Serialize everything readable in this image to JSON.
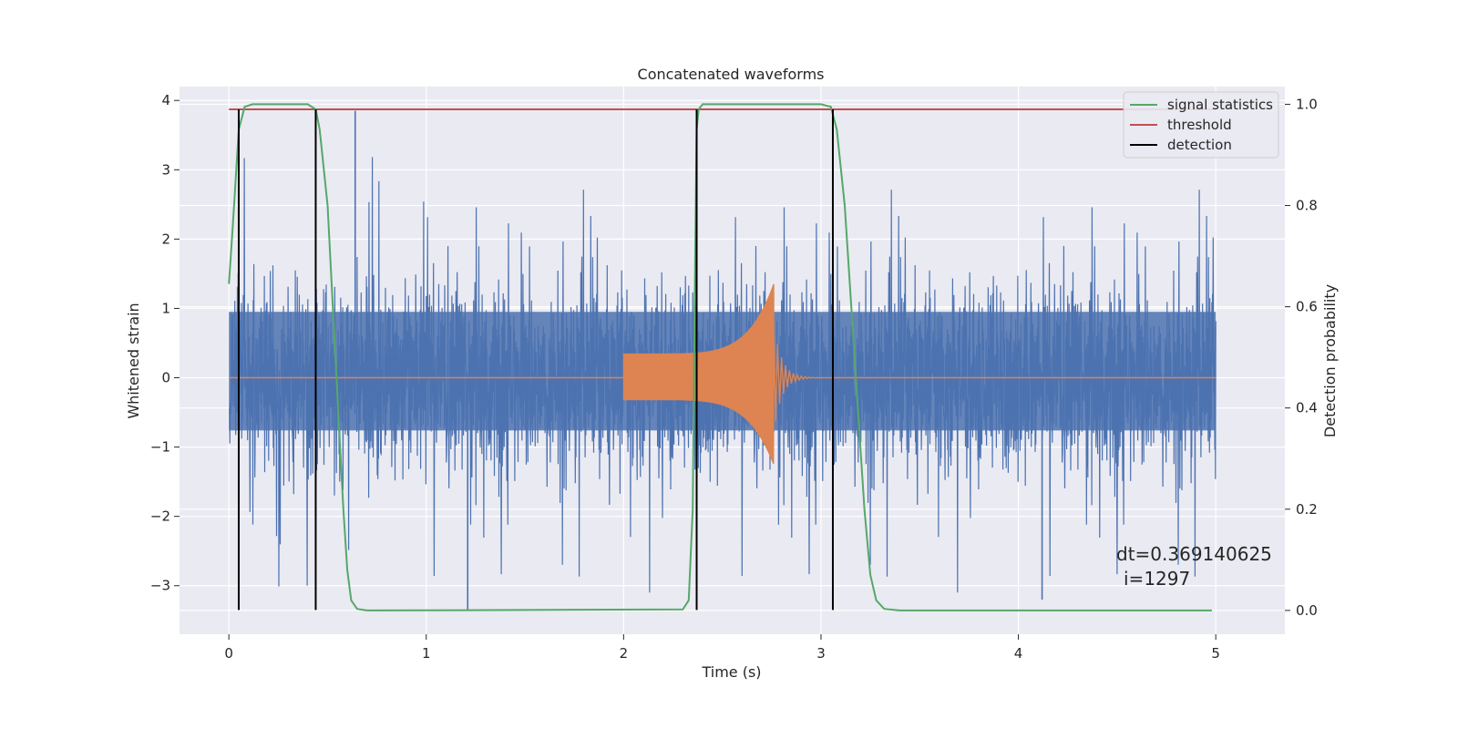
{
  "chart_data": {
    "type": "line",
    "title": "Concatenated waveforms",
    "xlabel": "Time (s)",
    "ylabel": "Whitened strain",
    "y2label": "Detection probability",
    "xlim": [
      -0.25,
      5.35
    ],
    "ylim": [
      -3.7,
      4.2
    ],
    "y2lim": [
      -0.047,
      1.035
    ],
    "x_ticks": [
      0,
      1,
      2,
      3,
      4,
      5
    ],
    "x_tick_labels": [
      "0",
      "1",
      "2",
      "3",
      "4",
      "5"
    ],
    "y_ticks": [
      -3,
      -2,
      -1,
      0,
      1,
      2,
      3,
      4
    ],
    "y_tick_labels": [
      "−3",
      "−2",
      "−1",
      "0",
      "1",
      "2",
      "3",
      "4"
    ],
    "y2_ticks": [
      0.0,
      0.2,
      0.4,
      0.6,
      0.8,
      1.0
    ],
    "y2_tick_labels": [
      "0.0",
      "0.2",
      "0.4",
      "0.6",
      "0.8",
      "1.0"
    ],
    "grid": true,
    "legend_position": "top-right",
    "legend": [
      {
        "label": "signal statistics",
        "color": "#55a868"
      },
      {
        "label": "threshold",
        "color": "#c44e52"
      },
      {
        "label": "detection",
        "color": "#000000"
      }
    ],
    "noise": {
      "color": "#4c72b0",
      "x_range": [
        0,
        5
      ],
      "core_amplitude": 0.95,
      "peak_extremes": [
        3.85,
        -3.35
      ]
    },
    "chirp": {
      "color": "#dd8452",
      "x_start": 2.0,
      "x_merger": 2.76,
      "start_amplitude": 0.35,
      "peak_amplitude": [
        1.35,
        -1.25
      ]
    },
    "series": [
      {
        "name": "signal statistics",
        "axis": "right",
        "color": "#55a868",
        "points": [
          [
            0.0,
            0.645
          ],
          [
            0.02,
            0.76
          ],
          [
            0.05,
            0.95
          ],
          [
            0.08,
            0.995
          ],
          [
            0.12,
            1.0
          ],
          [
            0.4,
            1.0
          ],
          [
            0.44,
            0.99
          ],
          [
            0.46,
            0.95
          ],
          [
            0.5,
            0.8
          ],
          [
            0.54,
            0.5
          ],
          [
            0.58,
            0.2
          ],
          [
            0.6,
            0.08
          ],
          [
            0.62,
            0.02
          ],
          [
            0.65,
            0.003
          ],
          [
            0.7,
            0.0
          ],
          [
            2.3,
            0.002
          ],
          [
            2.33,
            0.02
          ],
          [
            2.35,
            0.2
          ],
          [
            2.36,
            0.6
          ],
          [
            2.37,
            0.95
          ],
          [
            2.38,
            0.99
          ],
          [
            2.4,
            1.0
          ],
          [
            3.0,
            1.0
          ],
          [
            3.05,
            0.995
          ],
          [
            3.08,
            0.95
          ],
          [
            3.12,
            0.8
          ],
          [
            3.17,
            0.5
          ],
          [
            3.22,
            0.2
          ],
          [
            3.25,
            0.07
          ],
          [
            3.28,
            0.02
          ],
          [
            3.32,
            0.003
          ],
          [
            3.4,
            0.0
          ],
          [
            4.98,
            0.0
          ]
        ]
      },
      {
        "name": "threshold",
        "axis": "right",
        "color": "#c44e52",
        "x": [
          0.0,
          5.0
        ],
        "y": [
          0.99,
          0.99
        ]
      },
      {
        "name": "detection",
        "axis": "left",
        "color": "#000000",
        "x": [
          0.05,
          0.44,
          2.37,
          3.06
        ],
        "y_range": [
          -3.35,
          3.87
        ]
      }
    ],
    "annotations": [
      "dt=0.369140625",
      "i=1297"
    ]
  }
}
